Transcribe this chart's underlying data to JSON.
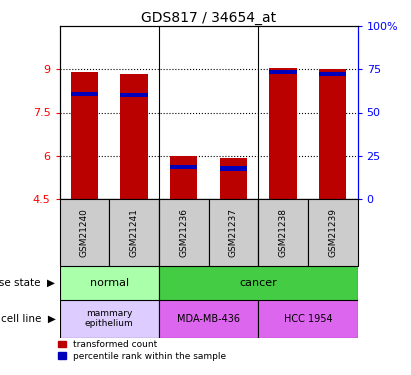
{
  "title": "GDS817 / 34654_at",
  "samples": [
    "GSM21240",
    "GSM21241",
    "GSM21236",
    "GSM21237",
    "GSM21238",
    "GSM21239"
  ],
  "transformed_counts": [
    8.9,
    8.85,
    5.97,
    5.93,
    9.05,
    9.0
  ],
  "percentile_ranks_y": [
    8.15,
    8.1,
    5.6,
    5.55,
    8.9,
    8.85
  ],
  "y_min": 4.5,
  "y_max": 10.5,
  "y_ticks": [
    4.5,
    6.0,
    7.5,
    9.0
  ],
  "y_tick_labels": [
    "4.5",
    "6",
    "7.5",
    "9"
  ],
  "y2_ticks_pct": [
    0,
    25,
    50,
    75,
    100
  ],
  "y2_tick_labels": [
    "0",
    "25",
    "50",
    "75",
    "100%"
  ],
  "bar_color": "#bb0000",
  "pct_color": "#0000bb",
  "bar_width": 0.55,
  "blue_bar_height": 0.15,
  "disease_normal_color": "#aaffaa",
  "disease_cancer_color": "#44cc44",
  "cell_mammary_color": "#ddccff",
  "cell_mda_color": "#dd66ee",
  "cell_hcc_color": "#dd66ee",
  "sample_box_color": "#cccccc",
  "title_fontsize": 10,
  "tick_fontsize": 8,
  "label_fontsize": 8,
  "annotation_fontsize": 8
}
